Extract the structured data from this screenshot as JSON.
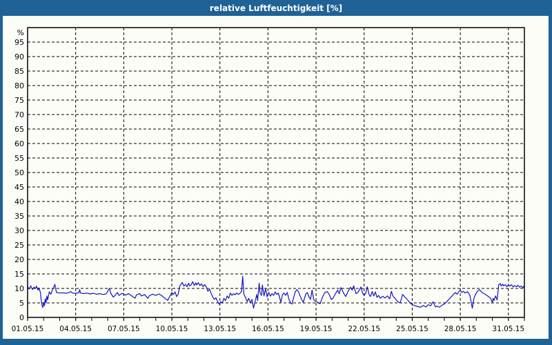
{
  "window": {
    "title": "relative Luftfeuchtigkeit [%]"
  },
  "colors": {
    "titlebar_bg": "#1e6296",
    "titlebar_text": "#ffffff",
    "canvas_bg": "#fdfdf8",
    "plot_frame": "#000000",
    "gridline": "#000000",
    "tick_text": "#000000",
    "line": "#1212c0"
  },
  "chart_data": {
    "type": "line",
    "title": "relative Luftfeuchtigkeit [%]",
    "ylabel": "%",
    "unit_label": "%",
    "ylim": [
      0,
      100
    ],
    "y_tick_step": 5,
    "y_tick_labels": [
      "0",
      "5",
      "10",
      "15",
      "20",
      "25",
      "30",
      "35",
      "40",
      "45",
      "50",
      "55",
      "60",
      "65",
      "70",
      "75",
      "80",
      "85",
      "90",
      "95"
    ],
    "xlim_days": [
      0,
      31
    ],
    "x_minor_step_days": 1,
    "grid": "dashed",
    "legend": "none",
    "x_ticks": [
      {
        "day": 0,
        "label": "01.05.15"
      },
      {
        "day": 3,
        "label": "04.05.15"
      },
      {
        "day": 6,
        "label": "07.05.15"
      },
      {
        "day": 9,
        "label": "10.05.15"
      },
      {
        "day": 12,
        "label": "13.05.15"
      },
      {
        "day": 15,
        "label": "16.05.15"
      },
      {
        "day": 18,
        "label": "19.05.15"
      },
      {
        "day": 21,
        "label": "22.05.15"
      },
      {
        "day": 24,
        "label": "25.05.15"
      },
      {
        "day": 27,
        "label": "28.05.15"
      },
      {
        "day": 30,
        "label": "31.05.15"
      }
    ],
    "series": [
      {
        "name": "relative Luftfeuchtigkeit",
        "color": "#1212c0",
        "points": [
          [
            0,
            10.6
          ],
          [
            0.1,
            9.8
          ],
          [
            0.2,
            10.9
          ],
          [
            0.3,
            9.6
          ],
          [
            0.4,
            10.4
          ],
          [
            0.5,
            10.0
          ],
          [
            0.55,
            10.8
          ],
          [
            0.65,
            9.4
          ],
          [
            0.7,
            10.2
          ],
          [
            0.8,
            8.6
          ],
          [
            0.85,
            6.0
          ],
          [
            0.9,
            4.2
          ],
          [
            0.95,
            3.4
          ],
          [
            1.0,
            5.2
          ],
          [
            1.05,
            4.0
          ],
          [
            1.1,
            6.4
          ],
          [
            1.15,
            5.0
          ],
          [
            1.2,
            7.4
          ],
          [
            1.25,
            6.0
          ],
          [
            1.35,
            8.8
          ],
          [
            1.45,
            8.0
          ],
          [
            1.55,
            9.6
          ],
          [
            1.65,
            10.6
          ],
          [
            1.7,
            11.4
          ],
          [
            1.8,
            8.6
          ],
          [
            2.0,
            8.4
          ],
          [
            2.2,
            8.5
          ],
          [
            2.4,
            8.3
          ],
          [
            2.6,
            8.6
          ],
          [
            2.7,
            8.9
          ],
          [
            2.8,
            8.4
          ],
          [
            3.0,
            8.3
          ],
          [
            3.2,
            8.5
          ],
          [
            3.25,
            9.6
          ],
          [
            3.3,
            8.4
          ],
          [
            3.5,
            8.2
          ],
          [
            3.7,
            8.4
          ],
          [
            3.9,
            8.1
          ],
          [
            4.1,
            8.3
          ],
          [
            4.3,
            8.0
          ],
          [
            4.5,
            8.2
          ],
          [
            4.7,
            7.9
          ],
          [
            4.9,
            8.1
          ],
          [
            5.0,
            9.0
          ],
          [
            5.1,
            10.0
          ],
          [
            5.2,
            8.2
          ],
          [
            5.35,
            7.0
          ],
          [
            5.5,
            7.8
          ],
          [
            5.6,
            8.6
          ],
          [
            5.7,
            7.6
          ],
          [
            5.9,
            8.3
          ],
          [
            6.1,
            7.7
          ],
          [
            6.3,
            8.2
          ],
          [
            6.5,
            7.4
          ],
          [
            6.7,
            6.6
          ],
          [
            6.8,
            7.8
          ],
          [
            7.0,
            8.2
          ],
          [
            7.1,
            7.4
          ],
          [
            7.3,
            7.9
          ],
          [
            7.5,
            6.6
          ],
          [
            7.6,
            7.5
          ],
          [
            7.8,
            8.0
          ],
          [
            8.0,
            7.6
          ],
          [
            8.2,
            8.1
          ],
          [
            8.4,
            7.4
          ],
          [
            8.6,
            6.4
          ],
          [
            8.75,
            5.9
          ],
          [
            8.9,
            7.6
          ],
          [
            9.0,
            8.6
          ],
          [
            9.1,
            7.9
          ],
          [
            9.2,
            8.8
          ],
          [
            9.3,
            7.2
          ],
          [
            9.4,
            8.0
          ],
          [
            9.5,
            10.8
          ],
          [
            9.6,
            11.6
          ],
          [
            9.65,
            12.1
          ],
          [
            9.75,
            10.8
          ],
          [
            9.85,
            11.4
          ],
          [
            9.95,
            10.6
          ],
          [
            10.05,
            11.8
          ],
          [
            10.1,
            10.9
          ],
          [
            10.2,
            11.2
          ],
          [
            10.3,
            12.3
          ],
          [
            10.4,
            11.0
          ],
          [
            10.5,
            11.9
          ],
          [
            10.55,
            11.2
          ],
          [
            10.65,
            12.0
          ],
          [
            10.75,
            11.0
          ],
          [
            10.85,
            11.6
          ],
          [
            10.95,
            10.6
          ],
          [
            11.05,
            11.3
          ],
          [
            11.15,
            10.5
          ],
          [
            11.25,
            9.0
          ],
          [
            11.35,
            9.8
          ],
          [
            11.45,
            8.3
          ],
          [
            11.55,
            7.0
          ],
          [
            11.65,
            6.2
          ],
          [
            11.75,
            6.8
          ],
          [
            11.85,
            5.6
          ],
          [
            11.95,
            4.6
          ],
          [
            12.05,
            5.4
          ],
          [
            12.15,
            5.0
          ],
          [
            12.25,
            6.6
          ],
          [
            12.35,
            5.8
          ],
          [
            12.45,
            7.4
          ],
          [
            12.55,
            6.6
          ],
          [
            12.65,
            8.4
          ],
          [
            12.75,
            7.6
          ],
          [
            12.85,
            8.2
          ],
          [
            12.95,
            7.8
          ],
          [
            13.05,
            8.4
          ],
          [
            13.15,
            7.9
          ],
          [
            13.25,
            8.3
          ],
          [
            13.35,
            9.0
          ],
          [
            13.42,
            14.2
          ],
          [
            13.5,
            8.0
          ],
          [
            13.6,
            6.8
          ],
          [
            13.7,
            5.4
          ],
          [
            13.8,
            6.6
          ],
          [
            13.9,
            5.0
          ],
          [
            14.0,
            6.2
          ],
          [
            14.1,
            3.2
          ],
          [
            14.2,
            5.6
          ],
          [
            14.3,
            7.9
          ],
          [
            14.35,
            5.8
          ],
          [
            14.45,
            11.8
          ],
          [
            14.5,
            8.4
          ],
          [
            14.6,
            7.6
          ],
          [
            14.65,
            11.2
          ],
          [
            14.75,
            7.4
          ],
          [
            14.85,
            9.9
          ],
          [
            14.95,
            7.1
          ],
          [
            15.05,
            8.6
          ],
          [
            15.15,
            7.3
          ],
          [
            15.25,
            8.2
          ],
          [
            15.35,
            7.6
          ],
          [
            15.45,
            8.8
          ],
          [
            15.55,
            7.9
          ],
          [
            15.65,
            8.4
          ],
          [
            15.8,
            5.2
          ],
          [
            15.9,
            7.8
          ],
          [
            16.0,
            8.4
          ],
          [
            16.1,
            7.6
          ],
          [
            16.2,
            8.6
          ],
          [
            16.3,
            6.4
          ],
          [
            16.4,
            5.0
          ],
          [
            16.5,
            4.6
          ],
          [
            16.6,
            6.8
          ],
          [
            16.7,
            8.8
          ],
          [
            16.8,
            9.6
          ],
          [
            16.9,
            8.9
          ],
          [
            17.0,
            7.4
          ],
          [
            17.1,
            6.2
          ],
          [
            17.2,
            5.2
          ],
          [
            17.35,
            7.9
          ],
          [
            17.45,
            8.6
          ],
          [
            17.55,
            7.2
          ],
          [
            17.65,
            6.2
          ],
          [
            17.75,
            9.4
          ],
          [
            17.85,
            6.2
          ],
          [
            17.95,
            5.6
          ],
          [
            18.1,
            5.2
          ],
          [
            18.25,
            4.7
          ],
          [
            18.4,
            7.0
          ],
          [
            18.55,
            8.6
          ],
          [
            18.7,
            8.9
          ],
          [
            18.85,
            7.6
          ],
          [
            18.95,
            6.2
          ],
          [
            19.05,
            6.6
          ],
          [
            19.2,
            8.1
          ],
          [
            19.35,
            9.4
          ],
          [
            19.45,
            8.2
          ],
          [
            19.55,
            10.3
          ],
          [
            19.7,
            8.6
          ],
          [
            19.85,
            7.2
          ],
          [
            20.0,
            9.0
          ],
          [
            20.15,
            10.4
          ],
          [
            20.25,
            9.4
          ],
          [
            20.35,
            10.9
          ],
          [
            20.5,
            8.2
          ],
          [
            20.6,
            8.6
          ],
          [
            20.7,
            9.4
          ],
          [
            20.8,
            10.5
          ],
          [
            20.9,
            8.4
          ],
          [
            21.0,
            7.6
          ],
          [
            21.1,
            8.3
          ],
          [
            21.2,
            10.6
          ],
          [
            21.3,
            8.0
          ],
          [
            21.4,
            7.2
          ],
          [
            21.5,
            8.9
          ],
          [
            21.6,
            7.4
          ],
          [
            21.7,
            8.8
          ],
          [
            21.8,
            6.9
          ],
          [
            21.9,
            7.6
          ],
          [
            22.0,
            6.6
          ],
          [
            22.15,
            7.3
          ],
          [
            22.3,
            6.7
          ],
          [
            22.45,
            7.4
          ],
          [
            22.6,
            6.4
          ],
          [
            22.7,
            9.0
          ],
          [
            22.8,
            7.4
          ],
          [
            22.95,
            6.4
          ],
          [
            23.1,
            5.4
          ],
          [
            23.25,
            5.0
          ],
          [
            23.4,
            7.9
          ],
          [
            23.55,
            7.0
          ],
          [
            23.7,
            6.1
          ],
          [
            23.85,
            5.1
          ],
          [
            24.0,
            4.4
          ],
          [
            24.15,
            4.1
          ],
          [
            24.3,
            3.8
          ],
          [
            24.5,
            3.5
          ],
          [
            24.7,
            4.1
          ],
          [
            24.85,
            3.6
          ],
          [
            25.0,
            4.4
          ],
          [
            25.15,
            4.0
          ],
          [
            25.3,
            5.4
          ],
          [
            25.45,
            3.6
          ],
          [
            25.55,
            3.9
          ],
          [
            25.7,
            3.5
          ],
          [
            25.85,
            4.2
          ],
          [
            26.0,
            4.6
          ],
          [
            26.15,
            5.4
          ],
          [
            26.3,
            6.3
          ],
          [
            26.45,
            7.2
          ],
          [
            26.6,
            8.1
          ],
          [
            26.7,
            8.6
          ],
          [
            26.8,
            8.0
          ],
          [
            26.9,
            8.8
          ],
          [
            27.0,
            9.4
          ],
          [
            27.1,
            8.6
          ],
          [
            27.2,
            9.0
          ],
          [
            27.3,
            8.4
          ],
          [
            27.45,
            8.9
          ],
          [
            27.6,
            7.6
          ],
          [
            27.75,
            3.2
          ],
          [
            27.85,
            6.5
          ],
          [
            27.95,
            8.0
          ],
          [
            28.05,
            8.9
          ],
          [
            28.2,
            9.6
          ],
          [
            28.35,
            8.6
          ],
          [
            28.5,
            8.2
          ],
          [
            28.6,
            7.8
          ],
          [
            28.7,
            7.4
          ],
          [
            28.8,
            7.0
          ],
          [
            28.9,
            6.6
          ],
          [
            29.0,
            5.0
          ],
          [
            29.05,
            6.6
          ],
          [
            29.1,
            5.8
          ],
          [
            29.2,
            7.4
          ],
          [
            29.3,
            6.0
          ],
          [
            29.4,
            11.3
          ],
          [
            29.5,
            11.7
          ],
          [
            29.55,
            10.8
          ],
          [
            29.65,
            11.5
          ],
          [
            29.7,
            10.9
          ],
          [
            29.8,
            11.3
          ],
          [
            29.9,
            10.6
          ],
          [
            30.0,
            11.2
          ],
          [
            30.1,
            10.8
          ],
          [
            30.2,
            11.3
          ],
          [
            30.3,
            10.5
          ],
          [
            30.4,
            11.0
          ],
          [
            30.5,
            10.6
          ],
          [
            30.6,
            11.1
          ],
          [
            30.7,
            10.4
          ],
          [
            30.8,
            10.8
          ],
          [
            30.9,
            10.2
          ],
          [
            30.95,
            10.7
          ],
          [
            31.0,
            10.3
          ]
        ]
      }
    ]
  }
}
